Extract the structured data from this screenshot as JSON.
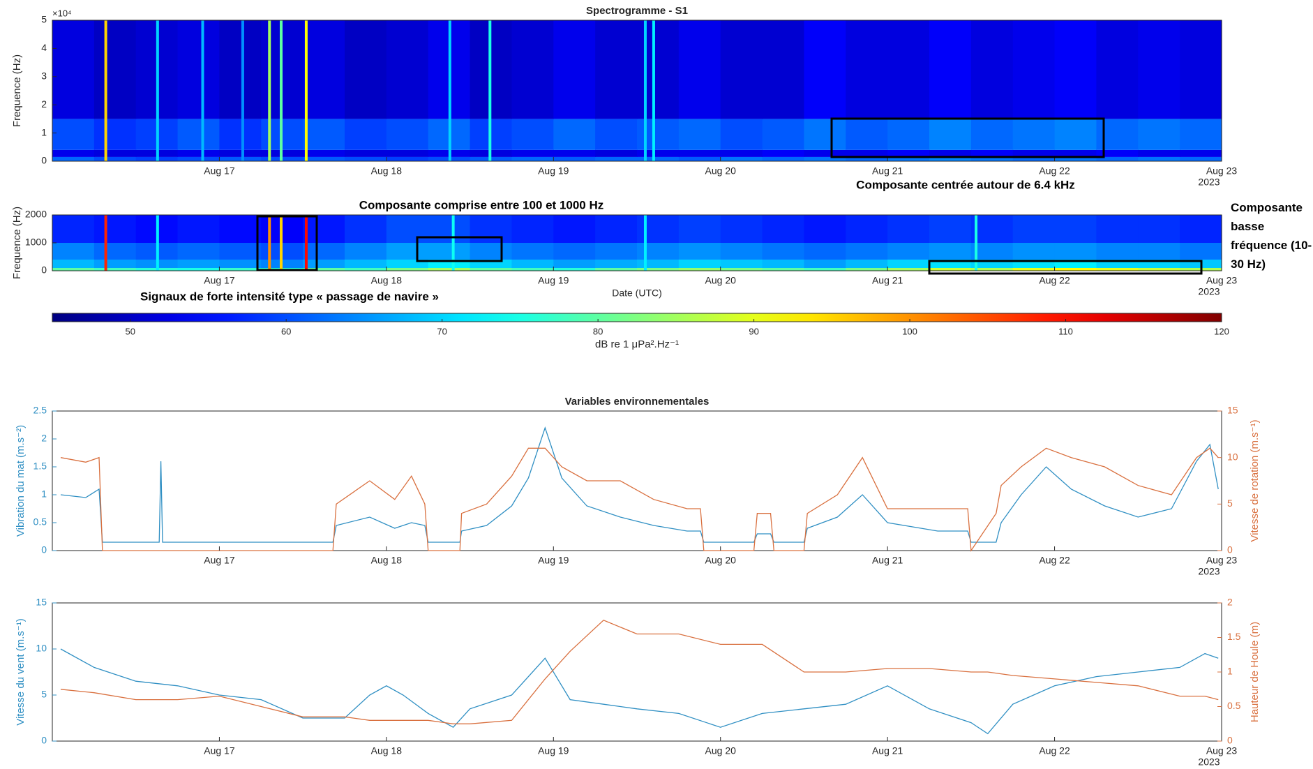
{
  "annotations": [
    "Composante centrée autour de 6.4 kHz",
    "Composante comprise entre 100 et 1000 Hz",
    "Composante basse fréquence (10-30 Hz)",
    "Signaux de forte intensité type « passage de navire »"
  ],
  "chart_data": [
    {
      "type": "heatmap",
      "title": "Spectrogramme - S1",
      "ylabel": "Frequence (Hz)",
      "y_multiplier": "×10⁴",
      "colormap": "jet",
      "zlim": [
        45,
        120
      ],
      "xlim": [
        16,
        23
      ],
      "ylim": [
        0,
        50000
      ],
      "xticks": [
        {
          "value": 17,
          "label": "Aug 17"
        },
        {
          "value": 18,
          "label": "Aug 18"
        },
        {
          "value": 19,
          "label": "Aug 19"
        },
        {
          "value": 20,
          "label": "Aug 20"
        },
        {
          "value": 21,
          "label": "Aug 21"
        },
        {
          "value": 22,
          "label": "Aug 22"
        },
        {
          "value": 23,
          "label": "Aug 23"
        }
      ],
      "x_secondary_label": "2023",
      "yticks": [
        0,
        {
          "value": 10000,
          "label": "1"
        },
        {
          "value": 20000,
          "label": "2"
        },
        {
          "value": 30000,
          "label": "3"
        },
        {
          "value": 40000,
          "label": "4"
        },
        {
          "value": 50000,
          "label": "5"
        }
      ],
      "xbins": [
        16,
        16.25,
        16.5,
        16.75,
        17,
        17.25,
        17.5,
        17.75,
        18,
        18.25,
        18.5,
        18.75,
        19,
        19.25,
        19.5,
        19.75,
        20,
        20.25,
        20.5,
        20.75,
        21,
        21.25,
        21.5,
        21.75,
        22,
        22.25,
        22.5,
        22.75,
        23
      ],
      "ybins": [
        0,
        1500,
        4000,
        15000,
        50000
      ],
      "z": [
        [
          62,
          60,
          59,
          60,
          61,
          60,
          61,
          60,
          59,
          60,
          61,
          62,
          61,
          62,
          62,
          61,
          63,
          62,
          63,
          62,
          63,
          64,
          63,
          62,
          63,
          62,
          63,
          62
        ],
        [
          53,
          52,
          52,
          53,
          52,
          52,
          53,
          52,
          52,
          53,
          52,
          53,
          53,
          52,
          53,
          53,
          53,
          54,
          53,
          53,
          54,
          53,
          54,
          53,
          53,
          54,
          53,
          53
        ],
        [
          60,
          58,
          59,
          61,
          58,
          60,
          61,
          59,
          60,
          62,
          59,
          60,
          62,
          60,
          61,
          62,
          60,
          61,
          63,
          61,
          62,
          64,
          62,
          63,
          64,
          62,
          63,
          62
        ],
        [
          52,
          50,
          51,
          52,
          50,
          51,
          52,
          50,
          51,
          53,
          50,
          51,
          53,
          51,
          51,
          53,
          51,
          51,
          54,
          52,
          52,
          54,
          52,
          53,
          54,
          52,
          53,
          52
        ]
      ],
      "spikes": [
        {
          "x": 16.32,
          "value": 95
        },
        {
          "x": 16.63,
          "value": 70
        },
        {
          "x": 16.9,
          "value": 68
        },
        {
          "x": 17.14,
          "value": 65
        },
        {
          "x": 17.3,
          "value": 85
        },
        {
          "x": 17.37,
          "value": 80
        },
        {
          "x": 17.52,
          "value": 92
        },
        {
          "x": 18.38,
          "value": 70
        },
        {
          "x": 18.62,
          "value": 75
        },
        {
          "x": 19.55,
          "value": 70
        },
        {
          "x": 19.6,
          "value": 72
        }
      ]
    },
    {
      "type": "heatmap",
      "ylabel": "Frequence (Hz)",
      "xlabel": "Date (UTC)",
      "colormap": "jet",
      "zlim": [
        45,
        120
      ],
      "xlim": [
        16,
        23
      ],
      "ylim": [
        0,
        2000
      ],
      "xticks": [
        {
          "value": 17,
          "label": "Aug 17"
        },
        {
          "value": 18,
          "label": "Aug 18"
        },
        {
          "value": 19,
          "label": "Aug 19"
        },
        {
          "value": 20,
          "label": "Aug 20"
        },
        {
          "value": 21,
          "label": "Aug 21"
        },
        {
          "value": 22,
          "label": "Aug 22"
        },
        {
          "value": 23,
          "label": "Aug 23"
        }
      ],
      "x_secondary_label": "2023",
      "yticks": [
        0,
        1000,
        2000
      ],
      "xbins": [
        16,
        16.25,
        16.5,
        16.75,
        17,
        17.25,
        17.5,
        17.75,
        18,
        18.25,
        18.5,
        18.75,
        19,
        19.25,
        19.5,
        19.75,
        20,
        20.25,
        20.5,
        20.75,
        21,
        21.25,
        21.5,
        21.75,
        22,
        22.25,
        22.5,
        22.75,
        23
      ],
      "ybins": [
        0,
        100,
        400,
        1000,
        2000
      ],
      "z": [
        [
          80,
          78,
          76,
          75,
          77,
          76,
          80,
          78,
          82,
          85,
          80,
          78,
          76,
          80,
          82,
          84,
          82,
          80,
          78,
          82,
          85,
          88,
          86,
          90,
          92,
          90,
          88,
          86
        ],
        [
          68,
          66,
          65,
          66,
          65,
          64,
          66,
          68,
          70,
          72,
          70,
          68,
          66,
          67,
          68,
          70,
          69,
          68,
          66,
          68,
          70,
          71,
          70,
          71,
          72,
          70,
          70,
          69
        ],
        [
          64,
          62,
          61,
          62,
          61,
          60,
          62,
          64,
          66,
          66,
          64,
          63,
          62,
          63,
          64,
          65,
          64,
          63,
          62,
          63,
          64,
          65,
          64,
          65,
          65,
          64,
          64,
          63
        ],
        [
          57,
          56,
          55,
          56,
          55,
          54,
          56,
          58,
          60,
          60,
          58,
          57,
          56,
          57,
          58,
          59,
          58,
          57,
          56,
          57,
          58,
          59,
          58,
          59,
          59,
          58,
          58,
          57
        ]
      ],
      "spikes": [
        {
          "x": 16.32,
          "value": 108
        },
        {
          "x": 16.63,
          "value": 72
        },
        {
          "x": 17.3,
          "value": 100
        },
        {
          "x": 17.37,
          "value": 95
        },
        {
          "x": 17.52,
          "value": 110
        },
        {
          "x": 18.4,
          "value": 74
        },
        {
          "x": 19.55,
          "value": 72
        },
        {
          "x": 21.53,
          "value": 75
        }
      ]
    },
    {
      "type": "colorbar",
      "colormap": "jet",
      "xlim": [
        45,
        120
      ],
      "xticks": [
        50,
        60,
        70,
        80,
        90,
        100,
        110,
        120
      ],
      "xlabel": "dB re 1 μPa².Hz⁻¹"
    },
    {
      "type": "line",
      "title": "Variables environnementales",
      "ylabel": "Vibration du mat (m.s⁻²)",
      "y2label": "Vitesse de rotation (m.s⁻¹)",
      "xlim": [
        16,
        23
      ],
      "ylim": [
        0,
        2.5
      ],
      "y2lim": [
        0,
        15
      ],
      "xticks": [
        {
          "value": 17,
          "label": "Aug 17"
        },
        {
          "value": 18,
          "label": "Aug 18"
        },
        {
          "value": 19,
          "label": "Aug 19"
        },
        {
          "value": 20,
          "label": "Aug 20"
        },
        {
          "value": 21,
          "label": "Aug 21"
        },
        {
          "value": 22,
          "label": "Aug 22"
        },
        {
          "value": 23,
          "label": "Aug 23"
        }
      ],
      "x_secondary_label": "2023",
      "yticks": [
        0,
        0.5,
        1,
        1.5,
        2,
        2.5
      ],
      "y2ticks": [
        0,
        5,
        10,
        15
      ],
      "x": [
        16.05,
        16.2,
        16.28,
        16.3,
        16.64,
        16.65,
        16.66,
        17.0,
        17.5,
        17.68,
        17.7,
        17.9,
        18.05,
        18.15,
        18.23,
        18.25,
        18.44,
        18.45,
        18.6,
        18.75,
        18.85,
        18.95,
        19.05,
        19.2,
        19.4,
        19.6,
        19.8,
        19.88,
        19.9,
        20.2,
        20.22,
        20.3,
        20.32,
        20.5,
        20.52,
        20.7,
        20.85,
        21.0,
        21.3,
        21.48,
        21.5,
        21.65,
        21.68,
        21.8,
        21.95,
        22.1,
        22.3,
        22.5,
        22.7,
        22.85,
        22.93,
        22.98
      ],
      "series": [
        {
          "name": "Vibration du mat",
          "color": "#2f8fc3",
          "axis": "y",
          "values": [
            1.0,
            0.95,
            1.1,
            0.15,
            0.15,
            1.6,
            0.15,
            0.15,
            0.15,
            0.15,
            0.45,
            0.6,
            0.4,
            0.5,
            0.45,
            0.15,
            0.15,
            0.35,
            0.45,
            0.8,
            1.3,
            2.2,
            1.3,
            0.8,
            0.6,
            0.45,
            0.35,
            0.35,
            0.15,
            0.15,
            0.3,
            0.3,
            0.15,
            0.15,
            0.4,
            0.6,
            1.0,
            0.5,
            0.35,
            0.35,
            0.15,
            0.15,
            0.5,
            1.0,
            1.5,
            1.1,
            0.8,
            0.6,
            0.75,
            1.6,
            1.9,
            1.1
          ]
        },
        {
          "name": "Vitesse de rotation",
          "color": "#d9703f",
          "axis": "y2",
          "values": [
            10,
            9.5,
            10,
            0,
            0,
            0,
            0,
            0,
            0,
            0,
            5,
            7.5,
            5.5,
            8,
            5,
            0,
            0,
            4,
            5,
            8,
            11,
            11,
            9,
            7.5,
            7.5,
            5.5,
            4.5,
            4.5,
            0,
            0,
            4,
            4,
            0,
            0,
            4,
            6,
            10,
            4.5,
            4.5,
            4.5,
            0,
            4,
            7,
            9,
            11,
            10,
            9,
            7,
            6,
            10,
            11,
            10
          ]
        }
      ]
    },
    {
      "type": "line",
      "ylabel": "Vitesse du vent (m.s⁻¹)",
      "y2label": "Hauteur de Houle (m)",
      "xlim": [
        16,
        23
      ],
      "ylim": [
        0,
        15
      ],
      "y2lim": [
        0,
        2
      ],
      "xticks": [
        {
          "value": 17,
          "label": "Aug 17"
        },
        {
          "value": 18,
          "label": "Aug 18"
        },
        {
          "value": 19,
          "label": "Aug 19"
        },
        {
          "value": 20,
          "label": "Aug 20"
        },
        {
          "value": 21,
          "label": "Aug 21"
        },
        {
          "value": 22,
          "label": "Aug 22"
        },
        {
          "value": 23,
          "label": "Aug 23"
        }
      ],
      "x_secondary_label": "2023",
      "yticks": [
        0,
        5,
        10,
        15
      ],
      "y2ticks": [
        0,
        0.5,
        1,
        1.5,
        2
      ],
      "x": [
        16.05,
        16.25,
        16.5,
        16.75,
        17.0,
        17.25,
        17.5,
        17.75,
        17.9,
        18.0,
        18.1,
        18.25,
        18.4,
        18.5,
        18.75,
        18.95,
        19.1,
        19.3,
        19.5,
        19.75,
        20.0,
        20.25,
        20.5,
        20.75,
        21.0,
        21.25,
        21.5,
        21.6,
        21.75,
        22.0,
        22.25,
        22.5,
        22.75,
        22.9,
        22.98
      ],
      "series": [
        {
          "name": "Vitesse du vent",
          "color": "#2f8fc3",
          "axis": "y",
          "values": [
            10,
            8,
            6.5,
            6,
            5,
            4.5,
            2.5,
            2.5,
            5,
            6,
            5,
            3,
            1.5,
            3.5,
            5,
            9,
            4.5,
            4,
            3.5,
            3,
            1.5,
            3,
            3.5,
            4,
            6,
            3.5,
            2,
            0.8,
            4,
            6,
            7,
            7.5,
            8,
            9.5,
            9
          ]
        },
        {
          "name": "Hauteur de Houle",
          "color": "#d9703f",
          "axis": "y2",
          "values": [
            0.75,
            0.7,
            0.6,
            0.6,
            0.65,
            0.5,
            0.35,
            0.35,
            0.3,
            0.3,
            0.3,
            0.3,
            0.25,
            0.25,
            0.3,
            0.9,
            1.3,
            1.75,
            1.55,
            1.55,
            1.4,
            1.4,
            1.0,
            1.0,
            1.05,
            1.05,
            1.0,
            1.0,
            0.95,
            0.9,
            0.85,
            0.8,
            0.65,
            0.65,
            0.6
          ]
        }
      ]
    }
  ]
}
